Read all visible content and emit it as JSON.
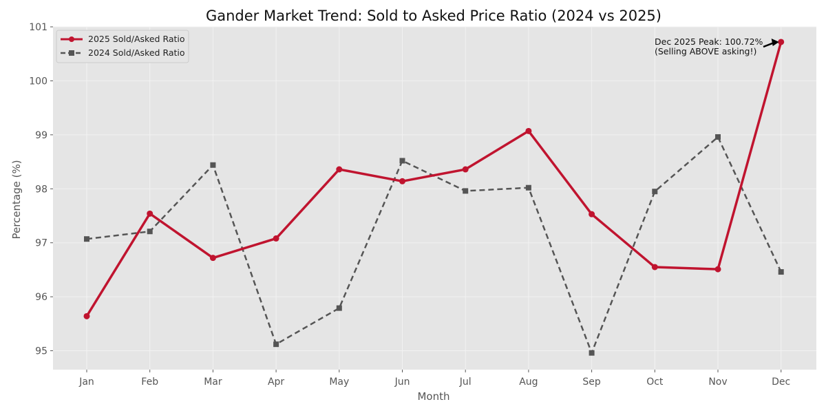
{
  "chart_data": {
    "type": "line",
    "title": "Gander Market Trend: Sold to Asked Price Ratio (2024 vs 2025)",
    "xlabel": "Month",
    "ylabel": "Percentage (%)",
    "categories": [
      "Jan",
      "Feb",
      "Mar",
      "Apr",
      "May",
      "Jun",
      "Jul",
      "Aug",
      "Sep",
      "Oct",
      "Nov",
      "Dec"
    ],
    "ylim": [
      94.65,
      101
    ],
    "yticks": [
      "95",
      "96",
      "97",
      "98",
      "99",
      "100",
      "101"
    ],
    "grid": true,
    "legend_position": "top-left",
    "series": [
      {
        "name": "2025 Sold/Asked Ratio",
        "color": "#c0142f",
        "marker": "circle",
        "linestyle": "solid",
        "values": [
          95.64,
          97.54,
          96.72,
          97.08,
          98.36,
          98.14,
          98.36,
          99.07,
          97.53,
          96.55,
          96.51,
          100.72
        ]
      },
      {
        "name": "2024 Sold/Asked Ratio",
        "color": "#555555",
        "marker": "square",
        "linestyle": "dashed",
        "values": [
          97.07,
          97.21,
          98.44,
          95.12,
          95.79,
          98.52,
          97.96,
          98.02,
          94.96,
          97.95,
          98.96,
          96.46
        ]
      }
    ],
    "annotation": {
      "line1": "Dec 2025 Peak: 100.72%",
      "line2": "(Selling ABOVE asking!)",
      "series_index": 0,
      "point_index": 11
    }
  }
}
